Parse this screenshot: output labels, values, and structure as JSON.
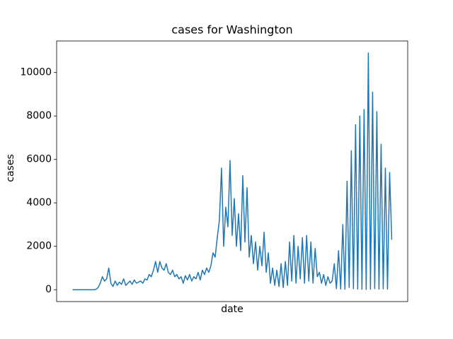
{
  "chart_data": {
    "type": "line",
    "title": "cases for Washington",
    "xlabel": "date",
    "ylabel": "cases",
    "color": "#1f77b4",
    "grid": false,
    "ylim": [
      -545,
      11454
    ],
    "yticks": [
      0,
      2000,
      4000,
      6000,
      8000,
      10000
    ],
    "values": [
      0,
      0,
      0,
      0,
      0,
      0,
      0,
      0,
      0,
      0,
      0,
      20,
      100,
      300,
      600,
      400,
      500,
      1000,
      300,
      150,
      400,
      200,
      350,
      250,
      500,
      200,
      300,
      400,
      250,
      450,
      300,
      350,
      400,
      300,
      500,
      450,
      700,
      600,
      900,
      1300,
      800,
      1300,
      1000,
      900,
      1200,
      800,
      700,
      900,
      600,
      700,
      500,
      600,
      300,
      650,
      450,
      700,
      400,
      600,
      500,
      800,
      450,
      900,
      700,
      1000,
      800,
      1100,
      1700,
      1500,
      2400,
      3200,
      5600,
      2000,
      3800,
      2900,
      5950,
      2500,
      4200,
      2000,
      3500,
      1800,
      5250,
      2200,
      4700,
      1500,
      2500,
      1200,
      2200,
      900,
      2000,
      1100,
      2650,
      800,
      1700,
      300,
      1000,
      200,
      900,
      150,
      1200,
      100,
      1300,
      200,
      2200,
      400,
      2500,
      300,
      2000,
      500,
      2400,
      300,
      2500,
      400,
      2200,
      300,
      1900,
      600,
      800,
      300,
      700,
      200,
      600,
      300,
      400,
      1200,
      50,
      1800,
      30,
      3000,
      20,
      5000,
      100,
      6400,
      50,
      7600,
      30,
      8000,
      20,
      8300,
      10,
      10900,
      20,
      9100,
      50,
      8200,
      30,
      6700,
      40,
      5600,
      30,
      5400,
      2300
    ]
  }
}
